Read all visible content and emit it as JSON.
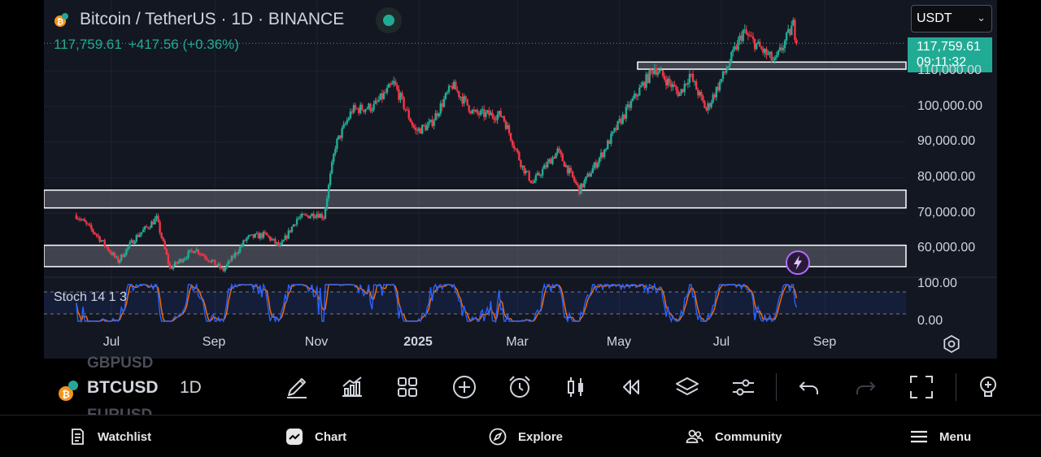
{
  "header": {
    "title": "Bitcoin / TetherUS · 1D · BINANCE",
    "last_price": "117,759.61",
    "change": "+417.56 (+0.36%)",
    "up_color": "#22ab94",
    "down_color": "#f23645"
  },
  "currency_select": {
    "value": "USDT"
  },
  "price_tag": {
    "price": "117,759.61",
    "countdown": "09:11:32"
  },
  "y_axis": {
    "labels": [
      "110,000.00",
      "100,000.00",
      "90,000.00",
      "80,000.00",
      "70,000.00",
      "60,000.00"
    ],
    "range": [
      54000,
      120000
    ]
  },
  "stoch_axis": {
    "labels": [
      "100.00",
      "0.00"
    ],
    "range": [
      0,
      100
    ],
    "bands": [
      80,
      20
    ]
  },
  "x_axis": {
    "labels": [
      "Jul",
      "Sep",
      "Nov",
      "2025",
      "Mar",
      "May",
      "Jul",
      "Sep"
    ],
    "bold_label": "2025"
  },
  "indicator": {
    "label": "Stoch 14 1 3",
    "k_color": "#2962ff",
    "d_color": "#ff6d00"
  },
  "zones": [
    {
      "low": 71500,
      "high": 76500,
      "span": "full"
    },
    {
      "low": 55000,
      "high": 61000,
      "span": "full"
    },
    {
      "low": 110500,
      "high": 112500,
      "span": "right"
    }
  ],
  "chart_data": {
    "type": "candlestick",
    "symbol": "BTCUSDT",
    "timeframe": "1D",
    "close_path": [
      [
        "2024-06-10",
        69500
      ],
      [
        "2024-06-22",
        64000
      ],
      [
        "2024-07-05",
        56500
      ],
      [
        "2024-07-15",
        63000
      ],
      [
        "2024-07-28",
        68500
      ],
      [
        "2024-08-05",
        54500
      ],
      [
        "2024-08-20",
        60000
      ],
      [
        "2024-09-06",
        54000
      ],
      [
        "2024-09-20",
        63000
      ],
      [
        "2024-10-01",
        64000
      ],
      [
        "2024-10-10",
        60500
      ],
      [
        "2024-10-20",
        68500
      ],
      [
        "2024-11-01",
        70000
      ],
      [
        "2024-11-05",
        69000
      ],
      [
        "2024-11-12",
        89000
      ],
      [
        "2024-11-22",
        99000
      ],
      [
        "2024-12-05",
        100000
      ],
      [
        "2024-12-17",
        106500
      ],
      [
        "2024-12-30",
        93000
      ],
      [
        "2025-01-08",
        95000
      ],
      [
        "2025-01-21",
        106000
      ],
      [
        "2025-02-03",
        98000
      ],
      [
        "2025-02-20",
        97500
      ],
      [
        "2025-03-04",
        83000
      ],
      [
        "2025-03-10",
        78500
      ],
      [
        "2025-03-25",
        87500
      ],
      [
        "2025-04-07",
        76500
      ],
      [
        "2025-04-21",
        87000
      ],
      [
        "2025-05-01",
        95500
      ],
      [
        "2025-05-12",
        104000
      ],
      [
        "2025-05-22",
        111000
      ],
      [
        "2025-06-06",
        103500
      ],
      [
        "2025-06-12",
        109000
      ],
      [
        "2025-06-22",
        99000
      ],
      [
        "2025-07-03",
        109500
      ],
      [
        "2025-07-14",
        121000
      ],
      [
        "2025-07-25",
        116000
      ],
      [
        "2025-08-02",
        112500
      ],
      [
        "2025-08-13",
        123000
      ],
      [
        "2025-08-15",
        117759.61
      ]
    ]
  },
  "toolbar": {
    "symbol": "BTCUSD",
    "symbol_above": "GBPUSD",
    "symbol_below": "EURUSD",
    "timeframe": "1D"
  },
  "bottom_nav": [
    {
      "label": "Watchlist",
      "icon": "watchlist-icon"
    },
    {
      "label": "Chart",
      "icon": "chart-icon"
    },
    {
      "label": "Explore",
      "icon": "compass-icon"
    },
    {
      "label": "Community",
      "icon": "community-icon"
    },
    {
      "label": "Menu",
      "icon": "menu-icon"
    }
  ]
}
